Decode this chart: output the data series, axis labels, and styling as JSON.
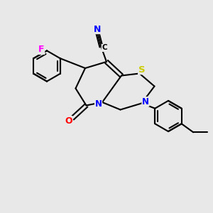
{
  "bg_color": "#e8e8e8",
  "bond_color": "#000000",
  "bond_width": 1.5,
  "atom_colors": {
    "N": "#0000ff",
    "S": "#cccc00",
    "O": "#ff0000",
    "F": "#ff00ff",
    "C": "#000000",
    "CN_N": "#0000ff",
    "CN_C": "#000000"
  },
  "font_size": 8.5,
  "fig_size": [
    3.0,
    3.0
  ],
  "dpi": 100
}
